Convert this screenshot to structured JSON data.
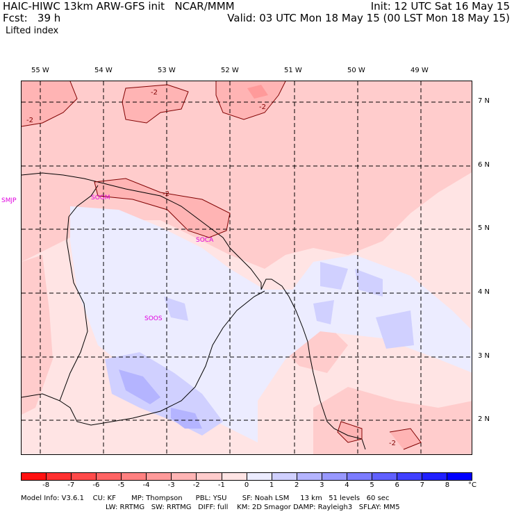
{
  "header": {
    "left_line1": "HAIC-HIWC 13km ARW-GFS init   NCAR/MMM",
    "left_line2": "Fcst:   39 h",
    "right_line1": "Init: 12 UTC Sat 16 May 15",
    "right_line2": "Valid: 03 UTC Mon 18 May 15 (00 LST Mon 18 May 15)",
    "field_name": "Lifted index"
  },
  "lon_labels": [
    "55 W",
    "54 W",
    "53 W",
    "52 W",
    "51 W",
    "50 W",
    "49 W"
  ],
  "lat_labels": [
    "7 N",
    "6 N",
    "5 N",
    "4 N",
    "3 N",
    "2 N"
  ],
  "stations": [
    "SMJP",
    "SOGM",
    "SOCA",
    "SOOS"
  ],
  "contour_labels": [
    "-2",
    "-2",
    "-2",
    "-2",
    "-2"
  ],
  "colorbar": {
    "unit": "°C",
    "tick_labels": [
      "-8",
      "-7",
      "-6",
      "-5",
      "-4",
      "-3",
      "-2",
      "-1",
      "0",
      "1",
      "2",
      "3",
      "4",
      "5",
      "6",
      "7",
      "8"
    ],
    "colors": [
      "#ff1010",
      "#ff3030",
      "#ff4a4a",
      "#ff6464",
      "#ff8080",
      "#ff9a9a",
      "#ffb4b4",
      "#ffcccc",
      "#ffe4e4",
      "#ececff",
      "#d0d0ff",
      "#b4b4ff",
      "#9898ff",
      "#7c7cff",
      "#6060ff",
      "#4040ff",
      "#2020ff",
      "#0000ff"
    ]
  },
  "footer": {
    "line1": "Model Info: V3.6.1    CU: KF       MP: Thompson      PBL: YSU       SF: Noah LSM     13 km   51 levels   60 sec",
    "line2": "LW: RRTMG   SW: RRTMG   DIFF: full    KM: 2D Smagor DAMP: Rayleigh3   SFLAY: MM5"
  }
}
